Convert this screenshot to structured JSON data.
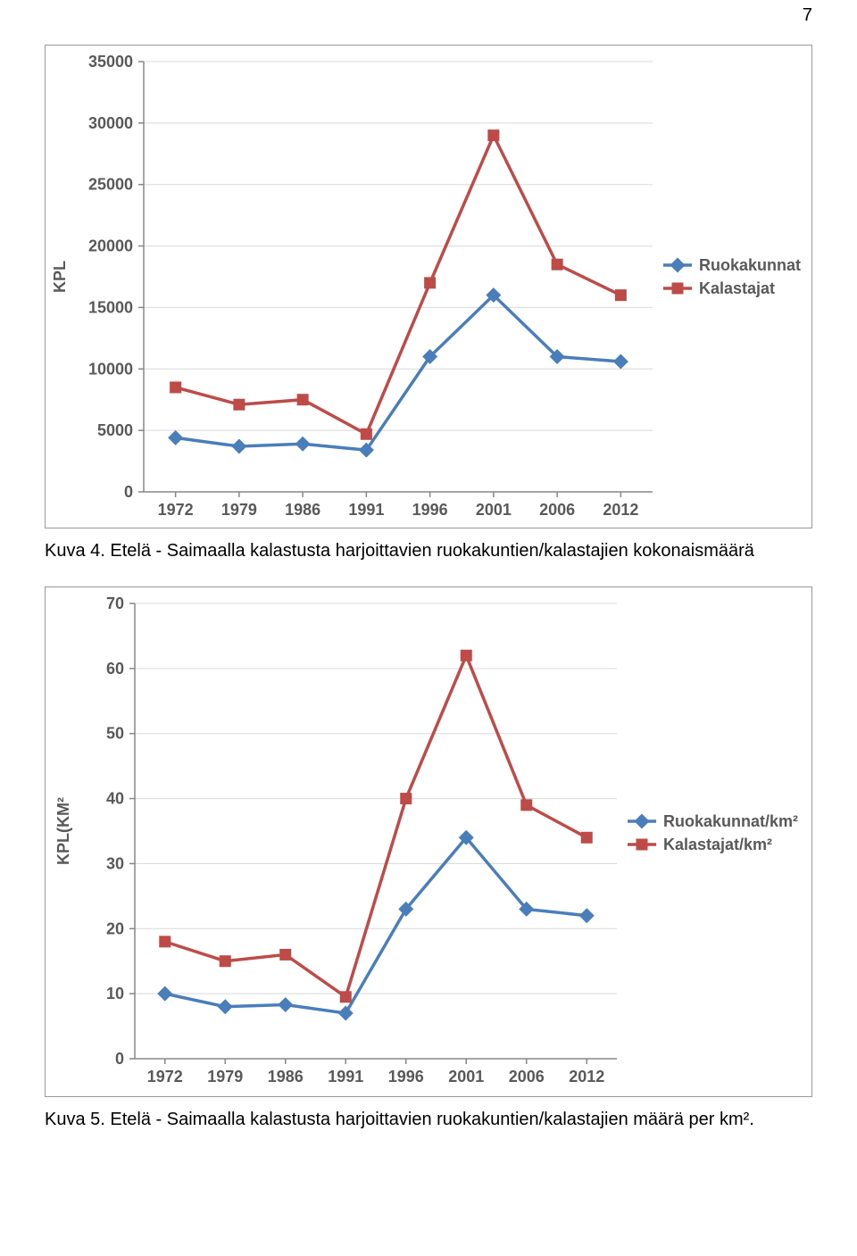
{
  "page_number": "7",
  "chart1": {
    "type": "line",
    "x_categories": [
      "1972",
      "1979",
      "1986",
      "1991",
      "1996",
      "2001",
      "2006",
      "2012"
    ],
    "y_ticks": [
      0,
      5000,
      10000,
      15000,
      20000,
      25000,
      30000,
      35000
    ],
    "y_tick_labels": [
      "0",
      "5000",
      "10000",
      "15000",
      "20000",
      "25000",
      "30000",
      "35000"
    ],
    "y_min": 0,
    "y_max": 35000,
    "y_axis_label": "KPL",
    "grid_color": "#d9d9d9",
    "axis_color": "#878787",
    "series": [
      {
        "name": "Ruokakunnat",
        "color": "#4a7ebb",
        "marker": "diamond",
        "values": [
          4400,
          3700,
          3900,
          3400,
          11000,
          16000,
          11000,
          10600
        ]
      },
      {
        "name": "Kalastajat",
        "color": "#be4b48",
        "marker": "square",
        "values": [
          8500,
          7100,
          7500,
          4700,
          17000,
          29000,
          18500,
          16000
        ]
      }
    ],
    "legend": [
      "Ruokakunnat",
      "Kalastajat"
    ]
  },
  "caption1": "Kuva 4. Etelä - Saimaalla kalastusta harjoittavien ruokakuntien/kalastajien kokonaismäärä",
  "chart2": {
    "type": "line",
    "x_categories": [
      "1972",
      "1979",
      "1986",
      "1991",
      "1996",
      "2001",
      "2006",
      "2012"
    ],
    "y_ticks": [
      0,
      10,
      20,
      30,
      40,
      50,
      60,
      70
    ],
    "y_tick_labels": [
      "0",
      "10",
      "20",
      "30",
      "40",
      "50",
      "60",
      "70"
    ],
    "y_min": 0,
    "y_max": 70,
    "y_axis_label": "KPL(KM²",
    "grid_color": "#d9d9d9",
    "axis_color": "#878787",
    "series": [
      {
        "name": "Ruokakunnat/km²",
        "color": "#4a7ebb",
        "marker": "diamond",
        "values": [
          10,
          8,
          8.3,
          7,
          23,
          34,
          23,
          22
        ]
      },
      {
        "name": "Kalastajat/km²",
        "color": "#be4b48",
        "marker": "square",
        "values": [
          18,
          15,
          16,
          9.5,
          40,
          62,
          39,
          34
        ]
      }
    ],
    "legend": [
      "Ruokakunnat/km²",
      "Kalastajat/km²"
    ]
  },
  "caption2": "Kuva 5. Etelä - Saimaalla kalastusta harjoittavien ruokakuntien/kalastajien määrä per km²."
}
